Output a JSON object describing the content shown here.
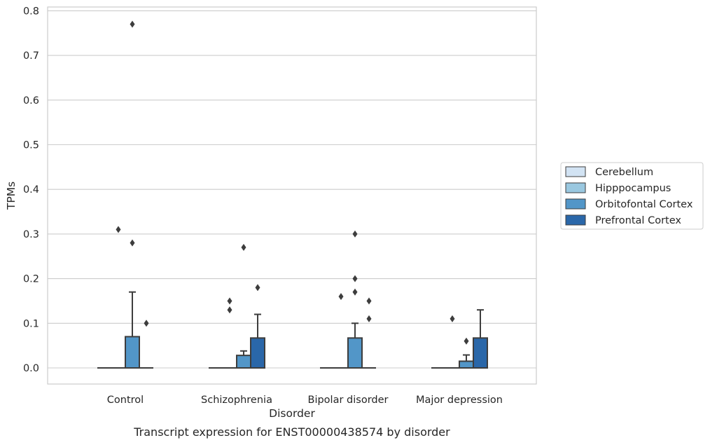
{
  "chart_data": {
    "type": "box",
    "title": "",
    "caption": "Transcript expression for ENST00000438574 by disorder",
    "xlabel": "Disorder",
    "ylabel": "TPMs",
    "ylim": [
      -0.038,
      0.812
    ],
    "yticks": [
      0.0,
      0.1,
      0.2,
      0.3,
      0.4,
      0.5,
      0.6,
      0.7,
      0.8
    ],
    "ytick_labels": [
      "0.0",
      "0.1",
      "0.2",
      "0.3",
      "0.4",
      "0.5",
      "0.6",
      "0.7",
      "0.8"
    ],
    "grid": true,
    "legend_position": "right",
    "categories": [
      "Control",
      "Schizophrenia",
      "Bipolar disorder",
      "Major depression"
    ],
    "series": [
      {
        "name": "Cerebellum",
        "color": "#d2e3f3",
        "boxes": [
          {
            "q1": 0,
            "median": 0,
            "q3": 0,
            "whisker_low": 0,
            "whisker_high": 0,
            "outliers": []
          },
          {
            "q1": 0,
            "median": 0,
            "q3": 0,
            "whisker_low": 0,
            "whisker_high": 0,
            "outliers": []
          },
          {
            "q1": 0,
            "median": 0,
            "q3": 0,
            "whisker_low": 0,
            "whisker_high": 0,
            "outliers": []
          },
          {
            "q1": 0,
            "median": 0,
            "q3": 0,
            "whisker_low": 0,
            "whisker_high": 0,
            "outliers": []
          }
        ]
      },
      {
        "name": "Hipppocampus",
        "color": "#9ac8e0",
        "boxes": [
          {
            "q1": 0,
            "median": 0,
            "q3": 0,
            "whisker_low": 0,
            "whisker_high": 0,
            "outliers": [
              0.31
            ]
          },
          {
            "q1": 0,
            "median": 0,
            "q3": 0,
            "whisker_low": 0,
            "whisker_high": 0,
            "outliers": [
              0.15,
              0.13
            ]
          },
          {
            "q1": 0,
            "median": 0,
            "q3": 0,
            "whisker_low": 0,
            "whisker_high": 0,
            "outliers": [
              0.16
            ]
          },
          {
            "q1": 0,
            "median": 0,
            "q3": 0,
            "whisker_low": 0,
            "whisker_high": 0,
            "outliers": [
              0.11
            ]
          }
        ]
      },
      {
        "name": "Orbitofontal Cortex",
        "color": "#5296c8",
        "boxes": [
          {
            "q1": 0,
            "median": 0,
            "q3": 0.07,
            "whisker_low": 0,
            "whisker_high": 0.17,
            "outliers": [
              0.77,
              0.28
            ]
          },
          {
            "q1": 0,
            "median": 0,
            "q3": 0.028,
            "whisker_low": 0,
            "whisker_high": 0.038,
            "outliers": [
              0.27
            ]
          },
          {
            "q1": 0,
            "median": 0,
            "q3": 0.067,
            "whisker_low": 0,
            "whisker_high": 0.1,
            "outliers": [
              0.3,
              0.2,
              0.17
            ]
          },
          {
            "q1": 0,
            "median": 0,
            "q3": 0.015,
            "whisker_low": 0,
            "whisker_high": 0.029,
            "outliers": [
              0.06
            ]
          }
        ]
      },
      {
        "name": "Prefrontal Cortex",
        "color": "#2a67a9",
        "boxes": [
          {
            "q1": 0,
            "median": 0,
            "q3": 0,
            "whisker_low": 0,
            "whisker_high": 0,
            "outliers": [
              0.1
            ]
          },
          {
            "q1": 0,
            "median": 0,
            "q3": 0.067,
            "whisker_low": 0,
            "whisker_high": 0.12,
            "outliers": [
              0.18
            ]
          },
          {
            "q1": 0,
            "median": 0,
            "q3": 0,
            "whisker_low": 0,
            "whisker_high": 0,
            "outliers": [
              0.15,
              0.11
            ]
          },
          {
            "q1": 0,
            "median": 0,
            "q3": 0.067,
            "whisker_low": 0,
            "whisker_high": 0.13,
            "outliers": []
          }
        ]
      }
    ]
  }
}
